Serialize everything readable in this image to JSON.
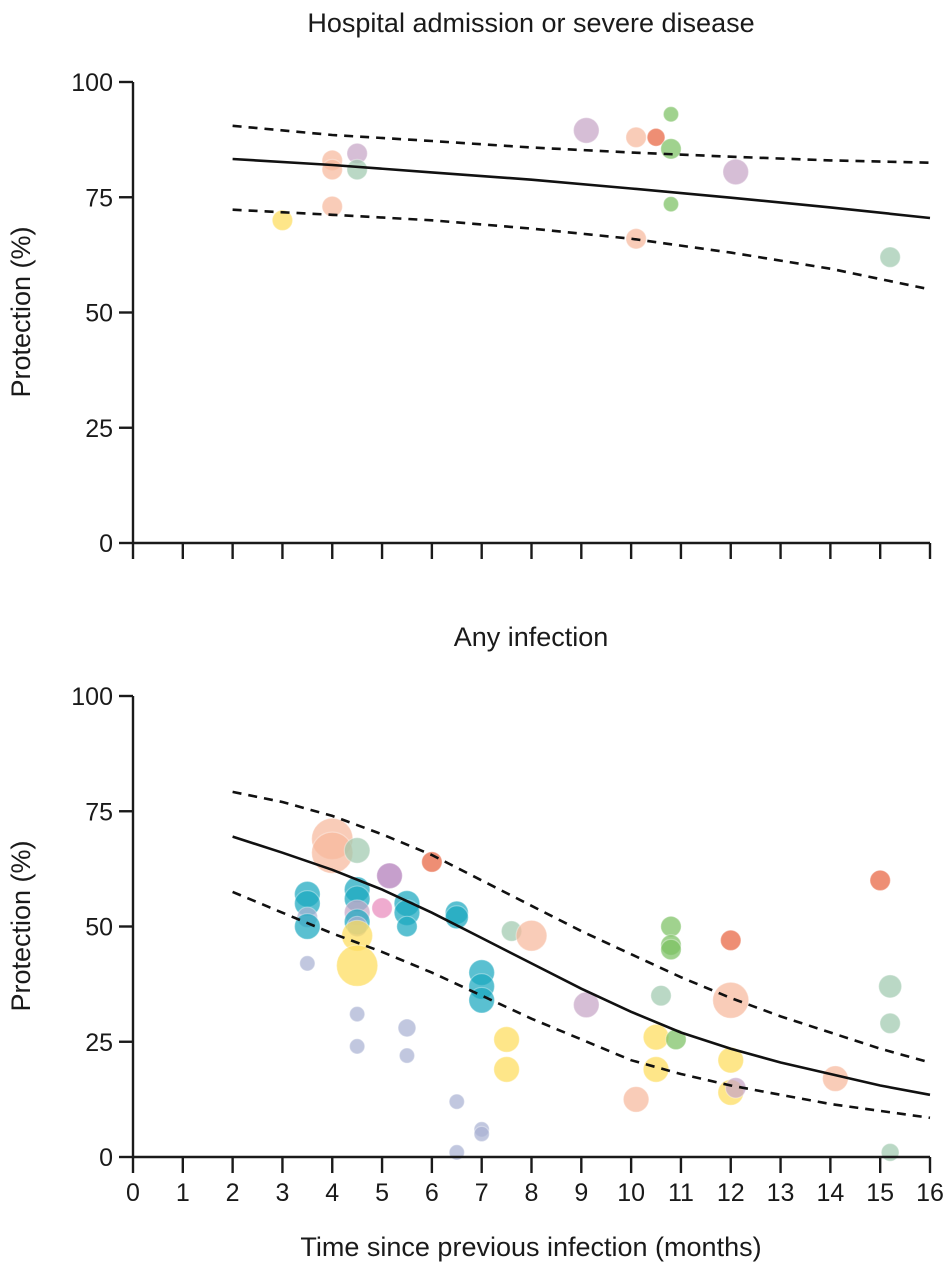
{
  "colors": {
    "yellow": "#fddc5c",
    "peach": "#f7b99c",
    "purple": "#c6a5c6",
    "sage": "#9fc9ae",
    "red": "#e8623e",
    "green": "#7cc062",
    "teal": "#1aa8bf",
    "lavender": "#a9b2d3",
    "pink": "#e98bbd",
    "violet": "#b07ab8"
  },
  "chart_data": [
    {
      "type": "scatter",
      "title": "Hospital admission or severe disease",
      "xlabel": "",
      "ylabel": "Protection (%)",
      "xlim": [
        0,
        16
      ],
      "ylim": [
        0,
        100
      ],
      "xticks": [
        0,
        1,
        2,
        3,
        4,
        5,
        6,
        7,
        8,
        9,
        10,
        11,
        12,
        13,
        14,
        15,
        16
      ],
      "xtick_labels_shown": false,
      "yticks": [
        0,
        25,
        50,
        75,
        100
      ],
      "ytick_labels": [
        "0",
        "25",
        "50",
        "75",
        "100"
      ],
      "grid": false,
      "fit": {
        "x": [
          2,
          4,
          6,
          8,
          10,
          12,
          14,
          16
        ],
        "estimate": [
          83.3,
          82.0,
          80.4,
          78.8,
          76.9,
          74.9,
          72.8,
          70.5
        ],
        "upper": [
          90.5,
          88.5,
          87.2,
          85.8,
          84.7,
          83.8,
          83.0,
          82.5
        ],
        "lower": [
          72.3,
          71.2,
          70.0,
          68.2,
          66.0,
          63.0,
          59.5,
          55.0
        ]
      },
      "points": [
        {
          "x": 3.0,
          "y": 70,
          "size": 2,
          "color": "yellow"
        },
        {
          "x": 4.0,
          "y": 83,
          "size": 2,
          "color": "peach"
        },
        {
          "x": 4.0,
          "y": 81,
          "size": 2,
          "color": "peach"
        },
        {
          "x": 4.0,
          "y": 73,
          "size": 2,
          "color": "peach"
        },
        {
          "x": 4.5,
          "y": 84.5,
          "size": 2,
          "color": "purple"
        },
        {
          "x": 4.5,
          "y": 81,
          "size": 2,
          "color": "sage"
        },
        {
          "x": 9.1,
          "y": 89.5,
          "size": 3,
          "color": "purple"
        },
        {
          "x": 10.1,
          "y": 88,
          "size": 2,
          "color": "peach"
        },
        {
          "x": 10.5,
          "y": 88,
          "size": 1.5,
          "color": "red"
        },
        {
          "x": 10.8,
          "y": 93,
          "size": 1,
          "color": "green"
        },
        {
          "x": 10.8,
          "y": 85.5,
          "size": 2,
          "color": "green"
        },
        {
          "x": 10.8,
          "y": 73.5,
          "size": 1,
          "color": "green"
        },
        {
          "x": 10.1,
          "y": 66,
          "size": 2,
          "color": "peach"
        },
        {
          "x": 12.1,
          "y": 80.5,
          "size": 3,
          "color": "purple"
        },
        {
          "x": 15.2,
          "y": 62,
          "size": 2,
          "color": "sage"
        }
      ]
    },
    {
      "type": "scatter",
      "title": "Any infection",
      "xlabel": "Time since previous infection (months)",
      "ylabel": "Protection (%)",
      "xlim": [
        0,
        16
      ],
      "ylim": [
        0,
        100
      ],
      "xticks": [
        0,
        1,
        2,
        3,
        4,
        5,
        6,
        7,
        8,
        9,
        10,
        11,
        12,
        13,
        14,
        15,
        16
      ],
      "xtick_labels": [
        "0",
        "1",
        "2",
        "3",
        "4",
        "5",
        "6",
        "7",
        "8",
        "9",
        "10",
        "11",
        "12",
        "13",
        "14",
        "15",
        "16"
      ],
      "yticks": [
        0,
        25,
        50,
        75,
        100
      ],
      "ytick_labels": [
        "0",
        "25",
        "50",
        "75",
        "100"
      ],
      "grid": false,
      "fit": {
        "x": [
          2,
          3,
          4,
          5,
          6,
          7,
          8,
          9,
          10,
          11,
          12,
          13,
          14,
          15,
          16
        ],
        "estimate": [
          69.5,
          66.0,
          62.3,
          58.0,
          53.0,
          47.5,
          42.0,
          36.5,
          31.5,
          27.0,
          23.5,
          20.5,
          18.0,
          15.5,
          13.5
        ],
        "upper": [
          79.2,
          77.0,
          74.0,
          70.0,
          65.5,
          60.0,
          54.5,
          49.0,
          44.0,
          39.0,
          34.5,
          30.5,
          27.0,
          23.5,
          20.5
        ],
        "lower": [
          57.5,
          53.0,
          48.5,
          44.5,
          40.0,
          35.0,
          30.0,
          25.5,
          21.0,
          18.0,
          15.5,
          13.5,
          11.5,
          10.0,
          8.5
        ]
      },
      "points": [
        {
          "x": 4.0,
          "y": 69,
          "size": 6,
          "color": "peach"
        },
        {
          "x": 4.0,
          "y": 66,
          "size": 6,
          "color": "peach"
        },
        {
          "x": 4.5,
          "y": 66.5,
          "size": 3,
          "color": "sage"
        },
        {
          "x": 6.0,
          "y": 64,
          "size": 2,
          "color": "red"
        },
        {
          "x": 5.15,
          "y": 61,
          "size": 3,
          "color": "violet"
        },
        {
          "x": 3.5,
          "y": 57,
          "size": 3,
          "color": "teal"
        },
        {
          "x": 3.5,
          "y": 55,
          "size": 3,
          "color": "teal"
        },
        {
          "x": 3.5,
          "y": 52,
          "size": 2,
          "color": "lavender"
        },
        {
          "x": 3.5,
          "y": 50,
          "size": 3,
          "color": "teal"
        },
        {
          "x": 3.5,
          "y": 42,
          "size": 1,
          "color": "lavender"
        },
        {
          "x": 4.5,
          "y": 58,
          "size": 3,
          "color": "teal"
        },
        {
          "x": 4.5,
          "y": 56,
          "size": 3,
          "color": "teal"
        },
        {
          "x": 4.5,
          "y": 53,
          "size": 3,
          "color": "purple"
        },
        {
          "x": 4.5,
          "y": 51,
          "size": 3,
          "color": "teal"
        },
        {
          "x": 4.5,
          "y": 50,
          "size": 2,
          "color": "lavender"
        },
        {
          "x": 4.5,
          "y": 48,
          "size": 4,
          "color": "yellow"
        },
        {
          "x": 4.5,
          "y": 41.5,
          "size": 6,
          "color": "yellow"
        },
        {
          "x": 4.5,
          "y": 31,
          "size": 1,
          "color": "lavender"
        },
        {
          "x": 4.5,
          "y": 24,
          "size": 1,
          "color": "lavender"
        },
        {
          "x": 5.0,
          "y": 54,
          "size": 2,
          "color": "pink"
        },
        {
          "x": 5.5,
          "y": 55,
          "size": 3,
          "color": "teal"
        },
        {
          "x": 5.5,
          "y": 53,
          "size": 3,
          "color": "teal"
        },
        {
          "x": 5.5,
          "y": 50,
          "size": 2,
          "color": "teal"
        },
        {
          "x": 5.5,
          "y": 28,
          "size": 1.5,
          "color": "lavender"
        },
        {
          "x": 5.5,
          "y": 22,
          "size": 1,
          "color": "lavender"
        },
        {
          "x": 6.5,
          "y": 53,
          "size": 2.5,
          "color": "teal"
        },
        {
          "x": 6.5,
          "y": 52,
          "size": 2.5,
          "color": "teal"
        },
        {
          "x": 6.5,
          "y": 12,
          "size": 1,
          "color": "lavender"
        },
        {
          "x": 6.5,
          "y": 1,
          "size": 1,
          "color": "lavender"
        },
        {
          "x": 7.0,
          "y": 40,
          "size": 3,
          "color": "teal"
        },
        {
          "x": 7.0,
          "y": 37,
          "size": 3,
          "color": "teal"
        },
        {
          "x": 7.0,
          "y": 34,
          "size": 3,
          "color": "teal"
        },
        {
          "x": 7.0,
          "y": 6,
          "size": 1,
          "color": "lavender"
        },
        {
          "x": 7.0,
          "y": 5,
          "size": 1,
          "color": "lavender"
        },
        {
          "x": 7.5,
          "y": 25.5,
          "size": 3,
          "color": "yellow"
        },
        {
          "x": 7.5,
          "y": 19,
          "size": 3,
          "color": "yellow"
        },
        {
          "x": 7.6,
          "y": 49,
          "size": 2,
          "color": "sage"
        },
        {
          "x": 8.0,
          "y": 48,
          "size": 4,
          "color": "peach"
        },
        {
          "x": 9.1,
          "y": 33,
          "size": 3,
          "color": "purple"
        },
        {
          "x": 10.1,
          "y": 12.5,
          "size": 3,
          "color": "peach"
        },
        {
          "x": 10.5,
          "y": 26,
          "size": 3,
          "color": "yellow"
        },
        {
          "x": 10.5,
          "y": 19,
          "size": 3,
          "color": "yellow"
        },
        {
          "x": 10.6,
          "y": 35,
          "size": 2,
          "color": "sage"
        },
        {
          "x": 10.8,
          "y": 50,
          "size": 2,
          "color": "green"
        },
        {
          "x": 10.8,
          "y": 46,
          "size": 2,
          "color": "green"
        },
        {
          "x": 10.8,
          "y": 45,
          "size": 2,
          "color": "green"
        },
        {
          "x": 10.9,
          "y": 25.5,
          "size": 2,
          "color": "green"
        },
        {
          "x": 12.0,
          "y": 47,
          "size": 2,
          "color": "red"
        },
        {
          "x": 12.0,
          "y": 34,
          "size": 5,
          "color": "peach"
        },
        {
          "x": 12.0,
          "y": 21,
          "size": 3,
          "color": "yellow"
        },
        {
          "x": 12.0,
          "y": 14,
          "size": 3,
          "color": "yellow"
        },
        {
          "x": 12.1,
          "y": 15,
          "size": 2,
          "color": "purple"
        },
        {
          "x": 14.1,
          "y": 17,
          "size": 3,
          "color": "peach"
        },
        {
          "x": 15.0,
          "y": 60,
          "size": 2,
          "color": "red"
        },
        {
          "x": 15.2,
          "y": 37,
          "size": 2.5,
          "color": "sage"
        },
        {
          "x": 15.2,
          "y": 29,
          "size": 2,
          "color": "sage"
        },
        {
          "x": 15.2,
          "y": 1,
          "size": 1.5,
          "color": "sage"
        }
      ]
    }
  ]
}
